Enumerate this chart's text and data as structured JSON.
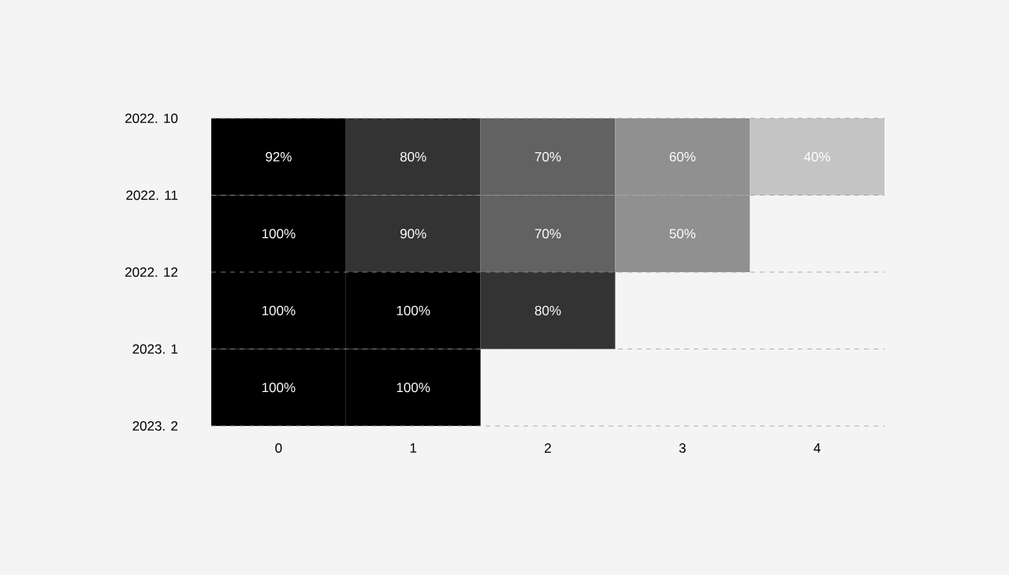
{
  "chart_data": {
    "type": "heatmap",
    "categories": [
      "0",
      "1",
      "2",
      "3",
      "4"
    ],
    "y_categories": [
      "2022. 10",
      "2022. 11",
      "2022. 12",
      "2023. 1",
      "2023. 2"
    ],
    "cells": [
      [
        92,
        80,
        70,
        60,
        40
      ],
      [
        100,
        90,
        70,
        50,
        null
      ],
      [
        100,
        100,
        80,
        null,
        null
      ],
      [
        100,
        100,
        null,
        null,
        null
      ],
      [
        null,
        null,
        null,
        null,
        null
      ]
    ],
    "cell_labels": [
      [
        "92%",
        "80%",
        "70%",
        "60%",
        "40%"
      ],
      [
        "100%",
        "90%",
        "70%",
        "50%",
        null
      ],
      [
        "100%",
        "100%",
        "80%",
        null,
        null
      ],
      [
        "100%",
        "100%",
        null,
        null,
        null
      ],
      [
        null,
        null,
        null,
        null,
        null
      ]
    ],
    "grid": "y"
  }
}
